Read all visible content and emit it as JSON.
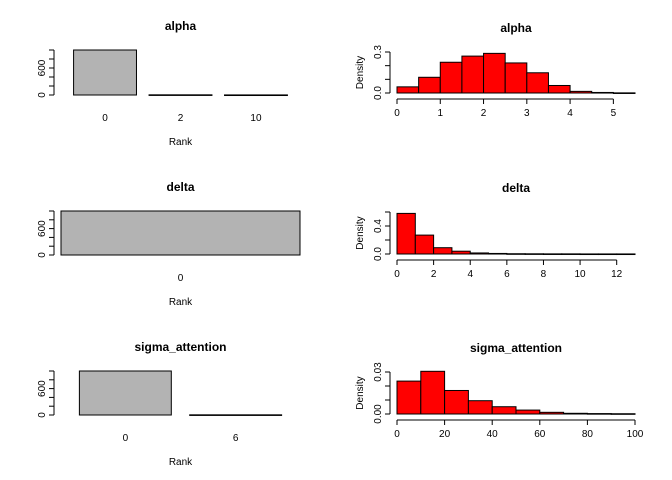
{
  "chart_data": [
    {
      "type": "bar",
      "title": "alpha",
      "xlabel": "Rank",
      "ylabel": "",
      "categories": [
        "0",
        "2",
        "10"
      ],
      "values": [
        1000,
        4,
        2
      ],
      "ylim": [
        0,
        1000
      ],
      "yticks": [
        0,
        600
      ],
      "yticks_minor": [
        200,
        400,
        800,
        1000
      ],
      "bar_color": "#b3b3b3"
    },
    {
      "type": "bar",
      "title": "alpha",
      "xlabel": "",
      "ylabel": "Density",
      "bin_edges": [
        0,
        0.5,
        1,
        1.5,
        2,
        2.5,
        3,
        3.5,
        4,
        4.5,
        5,
        5.5
      ],
      "values": [
        0.045,
        0.115,
        0.225,
        0.27,
        0.29,
        0.22,
        0.148,
        0.055,
        0.012,
        0.004,
        0.001
      ],
      "xlim": [
        0,
        5.5
      ],
      "xticks": [
        0,
        1,
        2,
        3,
        4,
        5
      ],
      "ylim": [
        0,
        0.3
      ],
      "yticks": [
        0.0,
        0.3
      ],
      "yticks_minor": [
        0.1,
        0.2
      ],
      "bar_color": "#ff0000"
    },
    {
      "type": "bar",
      "title": "delta",
      "xlabel": "Rank",
      "ylabel": "",
      "categories": [
        "0"
      ],
      "values": [
        1000
      ],
      "ylim": [
        0,
        1000
      ],
      "yticks": [
        0,
        600
      ],
      "yticks_minor": [
        200,
        400,
        800,
        1000
      ],
      "bar_color": "#b3b3b3"
    },
    {
      "type": "bar",
      "title": "delta",
      "xlabel": "",
      "ylabel": "Density",
      "bin_edges": [
        0,
        1,
        2,
        3,
        4,
        5,
        6,
        7,
        8,
        9,
        10,
        11,
        12,
        13
      ],
      "values": [
        0.58,
        0.27,
        0.09,
        0.04,
        0.015,
        0.008,
        0.004,
        0.003,
        0.002,
        0.002,
        0.001,
        0.001,
        0.001
      ],
      "xlim": [
        0,
        13
      ],
      "xticks": [
        0,
        2,
        4,
        6,
        8,
        10,
        12
      ],
      "ylim": [
        0,
        0.6
      ],
      "yticks": [
        0.0,
        0.4
      ],
      "yticks_minor": [
        0.2,
        0.6
      ],
      "bar_color": "#ff0000"
    },
    {
      "type": "bar",
      "title": "sigma_attention",
      "xlabel": "Rank",
      "ylabel": "",
      "categories": [
        "0",
        "6"
      ],
      "values": [
        1000,
        4
      ],
      "ylim": [
        0,
        1000
      ],
      "yticks": [
        0,
        600
      ],
      "yticks_minor": [
        200,
        400,
        800,
        1000
      ],
      "bar_color": "#b3b3b3"
    },
    {
      "type": "bar",
      "title": "sigma_attention",
      "xlabel": "",
      "ylabel": "Density",
      "bin_edges": [
        0,
        10,
        20,
        30,
        40,
        50,
        60,
        70,
        80,
        90,
        100
      ],
      "values": [
        0.0235,
        0.0305,
        0.0168,
        0.0095,
        0.0052,
        0.0028,
        0.0012,
        0.0005,
        0.0003,
        0.0002
      ],
      "xlim": [
        0,
        100
      ],
      "xticks": [
        0,
        20,
        40,
        60,
        80,
        100
      ],
      "ylim": [
        0,
        0.03
      ],
      "yticks": [
        0.0,
        0.03
      ],
      "yticks_minor": [
        0.01,
        0.02
      ],
      "bar_color": "#ff0000"
    }
  ]
}
